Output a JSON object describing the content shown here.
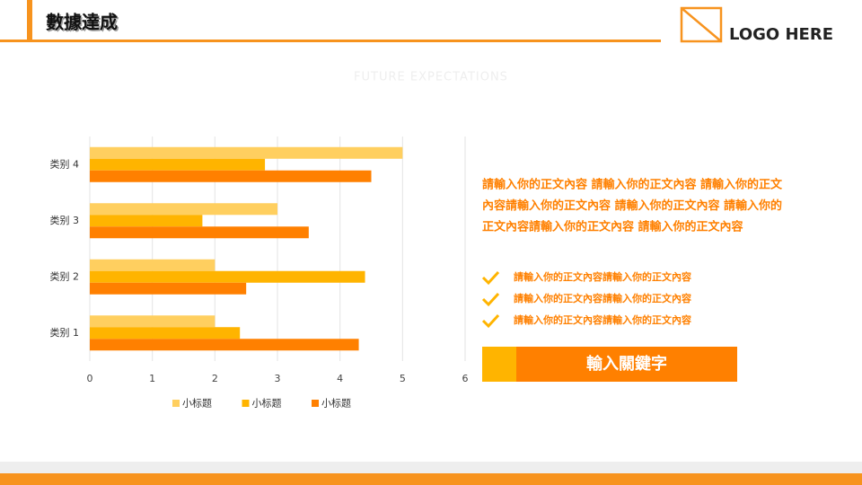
{
  "header": {
    "title": "數據達成",
    "logo": "LOGO HERE",
    "subtitle": "FUTURE  EXPECTATIONS"
  },
  "chart_data": {
    "type": "hbar",
    "categories": [
      "类别 1",
      "类别 2",
      "类别 3",
      "类别 4"
    ],
    "series": [
      {
        "name": "小标题",
        "color": "#FFCF5F",
        "values": [
          2,
          2,
          3,
          5
        ]
      },
      {
        "name": "小标题",
        "color": "#FFB400",
        "values": [
          2.4,
          4.4,
          1.8,
          2.8
        ]
      },
      {
        "name": "小标题",
        "color": "#FF8000",
        "values": [
          4.3,
          2.5,
          3.5,
          4.5
        ]
      }
    ],
    "xlim": [
      0,
      6
    ],
    "xticks": [
      0,
      1,
      2,
      3,
      4,
      5,
      6
    ],
    "grid": true,
    "legend": "bottom"
  },
  "text": {
    "paragraph": [
      "請輸入你的正文內容 請輸入你的正文內容 請輸入你的正文",
      "內容請輸入你的正文內容 請輸入你的正文內容 請輸入你的",
      "正文內容請輸入你的正文內容 請輸入你的正文內容"
    ],
    "items": [
      "請輸入你的正文內容請輸入你的正文內容",
      "請輸入你的正文內容請輸入你的正文內容",
      "請輸入你的正文內容請輸入你的正文內容"
    ],
    "button": "輸入關鍵字"
  }
}
